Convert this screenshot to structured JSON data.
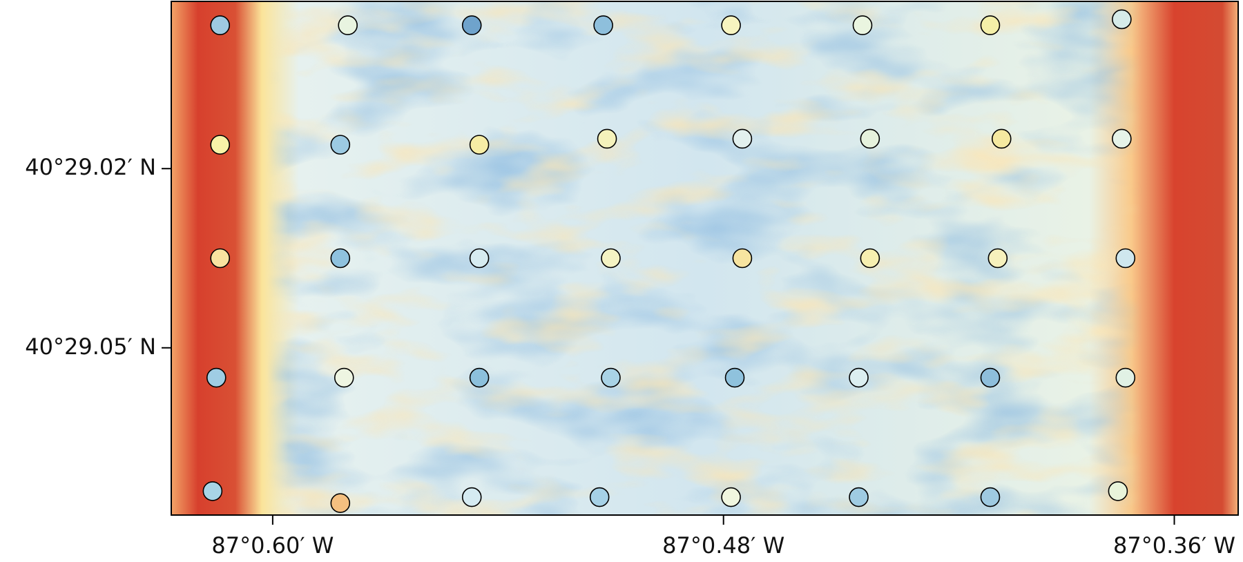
{
  "chart_data": {
    "type": "scatter",
    "xlim": [
      0.627,
      0.343
    ],
    "xticks": [
      {
        "value": 0.6,
        "label": "87°0.60′ W"
      },
      {
        "value": 0.48,
        "label": "87°0.48′ W"
      },
      {
        "value": 0.36,
        "label": "87°0.36′ W"
      }
    ],
    "ylim": [
      29.078,
      28.992
    ],
    "yticks": [
      {
        "value": 29.02,
        "label": "40°29.02′ N"
      },
      {
        "value": 29.05,
        "label": "40°29.05′ N"
      }
    ],
    "points": {
      "x": [
        0.614,
        0.58,
        0.547,
        0.512,
        0.478,
        0.443,
        0.409,
        0.374,
        0.614,
        0.582,
        0.545,
        0.511,
        0.475,
        0.441,
        0.406,
        0.374,
        0.614,
        0.582,
        0.545,
        0.51,
        0.475,
        0.441,
        0.407,
        0.373,
        0.615,
        0.581,
        0.545,
        0.51,
        0.477,
        0.444,
        0.409,
        0.373,
        0.616,
        0.582,
        0.547,
        0.513,
        0.478,
        0.444,
        0.409,
        0.375
      ],
      "y": [
        28.996,
        28.996,
        28.996,
        28.996,
        28.996,
        28.996,
        28.996,
        28.995,
        29.016,
        29.016,
        29.016,
        29.015,
        29.015,
        29.015,
        29.015,
        29.015,
        29.035,
        29.035,
        29.035,
        29.035,
        29.035,
        29.035,
        29.035,
        29.035,
        29.055,
        29.055,
        29.055,
        29.055,
        29.055,
        29.055,
        29.055,
        29.055,
        29.074,
        29.076,
        29.075,
        29.075,
        29.075,
        29.075,
        29.075,
        29.074
      ],
      "colors": [
        "#9ecae1",
        "#e8f4e0",
        "#6fa3cc",
        "#8ebfdc",
        "#f7f4c0",
        "#eaf5e0",
        "#f4efa8",
        "#d6ebe8",
        "#f8f3a8",
        "#9ccae2",
        "#f6eda5",
        "#f5f2bb",
        "#e2f0ee",
        "#e6f2dd",
        "#f5e9a0",
        "#e6f3e8",
        "#f8e3a0",
        "#8fc2de",
        "#d6ebf0",
        "#f4f3c3",
        "#f7e4a0",
        "#f6efb0",
        "#f6f1bc",
        "#cfe7ee",
        "#9fcde4",
        "#eef5e2",
        "#8cc0dc",
        "#a9d3e6",
        "#8fc2dd",
        "#dbeef0",
        "#8ebedb",
        "#e1f1e5",
        "#a8d4e6",
        "#f5c080",
        "#d5ebf2",
        "#a6d1e6",
        "#f0f6df",
        "#9fcbe2",
        "#9fcae1",
        "#e8f4da"
      ]
    }
  }
}
